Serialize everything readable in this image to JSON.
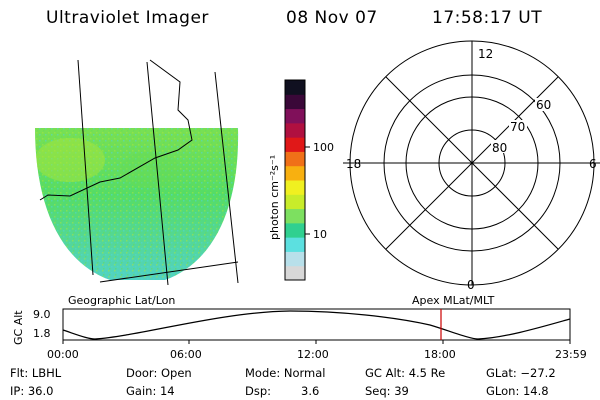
{
  "header": {
    "title": "Ultraviolet Imager",
    "date": "08 Nov 07",
    "time": "17:58:17 UT"
  },
  "colorbar": {
    "label": "photon cm⁻²s⁻¹",
    "tick_100": "100",
    "tick_10": "10",
    "colors": [
      "#d8d8d8",
      "#b8e0ea",
      "#5ce0e0",
      "#30d090",
      "#7de060",
      "#c8ec2a",
      "#f0f020",
      "#f8b010",
      "#f07018",
      "#e01818",
      "#b01040",
      "#80105a",
      "#3a0838",
      "#101020"
    ]
  },
  "polar": {
    "labels": {
      "top": "12",
      "bottom": "0",
      "left": "18",
      "right": "6",
      "lat60": "60",
      "lat70": "70",
      "lat80": "80"
    }
  },
  "map_colors": {
    "base": "#44d888",
    "green": "#66dd55",
    "yellow_green": "#a8e63a",
    "cyan": "#4fd6d6"
  },
  "timeline": {
    "left_caption": "Geographic Lat/Lon",
    "right_caption": "Apex MLat/MLT",
    "y_axis_label": "GC Alt",
    "y_max": "9.0",
    "y_min": "1.8",
    "ticks": [
      "00:00",
      "06:00",
      "12:00",
      "18:00",
      "23:59"
    ],
    "marker_color": "#cc0000"
  },
  "info": {
    "filter": "Flt: LBHL",
    "ip": "IP: 36.0",
    "door": "Door: Open",
    "gain": "Gain: 14",
    "mode": "Mode: Normal",
    "dsp_label": "Dsp:",
    "dsp_value": "3.6",
    "gc_alt": "GC Alt: 4.5 Re",
    "seq": "Seq: 39",
    "glat": "GLat: −27.2",
    "glon": "GLon:  14.8"
  }
}
